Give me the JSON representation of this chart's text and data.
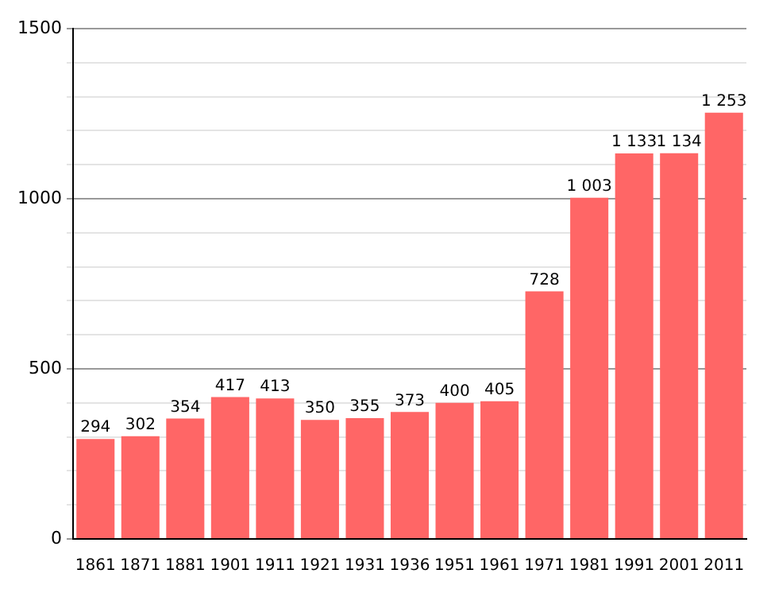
{
  "chart_data": {
    "type": "bar",
    "categories": [
      "1861",
      "1871",
      "1881",
      "1901",
      "1911",
      "1921",
      "1931",
      "1936",
      "1951",
      "1961",
      "1971",
      "1981",
      "1991",
      "2001",
      "2011"
    ],
    "series": [
      {
        "color": "#ff6666",
        "values": [
          294,
          302,
          354,
          417,
          413,
          350,
          355,
          373,
          400,
          405,
          728,
          1003,
          1133,
          1134,
          1253
        ],
        "value_labels": [
          "294",
          "302",
          "354",
          "417",
          "413",
          "350",
          "355",
          "373",
          "400",
          "405",
          "728",
          "1 003",
          "1 133",
          "1 134",
          "1 253"
        ]
      }
    ],
    "ylim": [
      0,
      1500
    ],
    "yticks": [
      0,
      {
        "value": 100,
        "label": null
      },
      {
        "value": 200,
        "label": null
      },
      {
        "value": 300,
        "label": null
      },
      {
        "value": 400,
        "label": null
      },
      500,
      {
        "value": 600,
        "label": null
      },
      {
        "value": 700,
        "label": null
      },
      {
        "value": 800,
        "label": null
      },
      {
        "value": 900,
        "label": null
      },
      1000,
      {
        "value": 1100,
        "label": null
      },
      {
        "value": 1200,
        "label": null
      },
      {
        "value": 1300,
        "label": null
      },
      {
        "value": 1400,
        "label": null
      },
      1500
    ],
    "grid": "y",
    "legend": false
  }
}
